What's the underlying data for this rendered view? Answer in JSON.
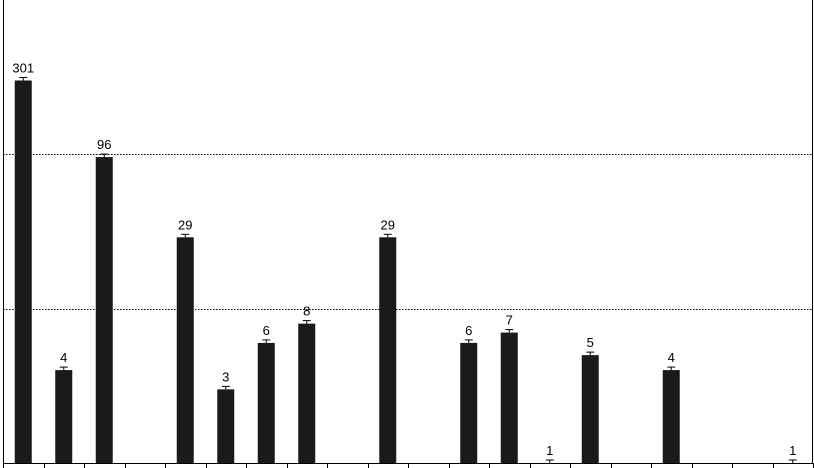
{
  "chart_data": {
    "type": "bar",
    "y_scale": "log",
    "ylim": [
      1,
      1000
    ],
    "grid": true,
    "grid_style": "dotted",
    "legend": "none",
    "title": "",
    "xlabel": "",
    "ylabel": "",
    "bar_color": "#1a1a1a",
    "error_bars": true,
    "categories_count": 20,
    "values": [
      301,
      4,
      96,
      null,
      29,
      3,
      6,
      8,
      null,
      29,
      null,
      6,
      7,
      1,
      5,
      null,
      4,
      null,
      null,
      1
    ],
    "data_labels": [
      "301",
      "4",
      "96",
      "",
      "29",
      "3",
      "6",
      "8",
      "",
      "29",
      "",
      "6",
      "7",
      "1",
      "5",
      "",
      "4",
      "",
      "",
      "1"
    ]
  }
}
